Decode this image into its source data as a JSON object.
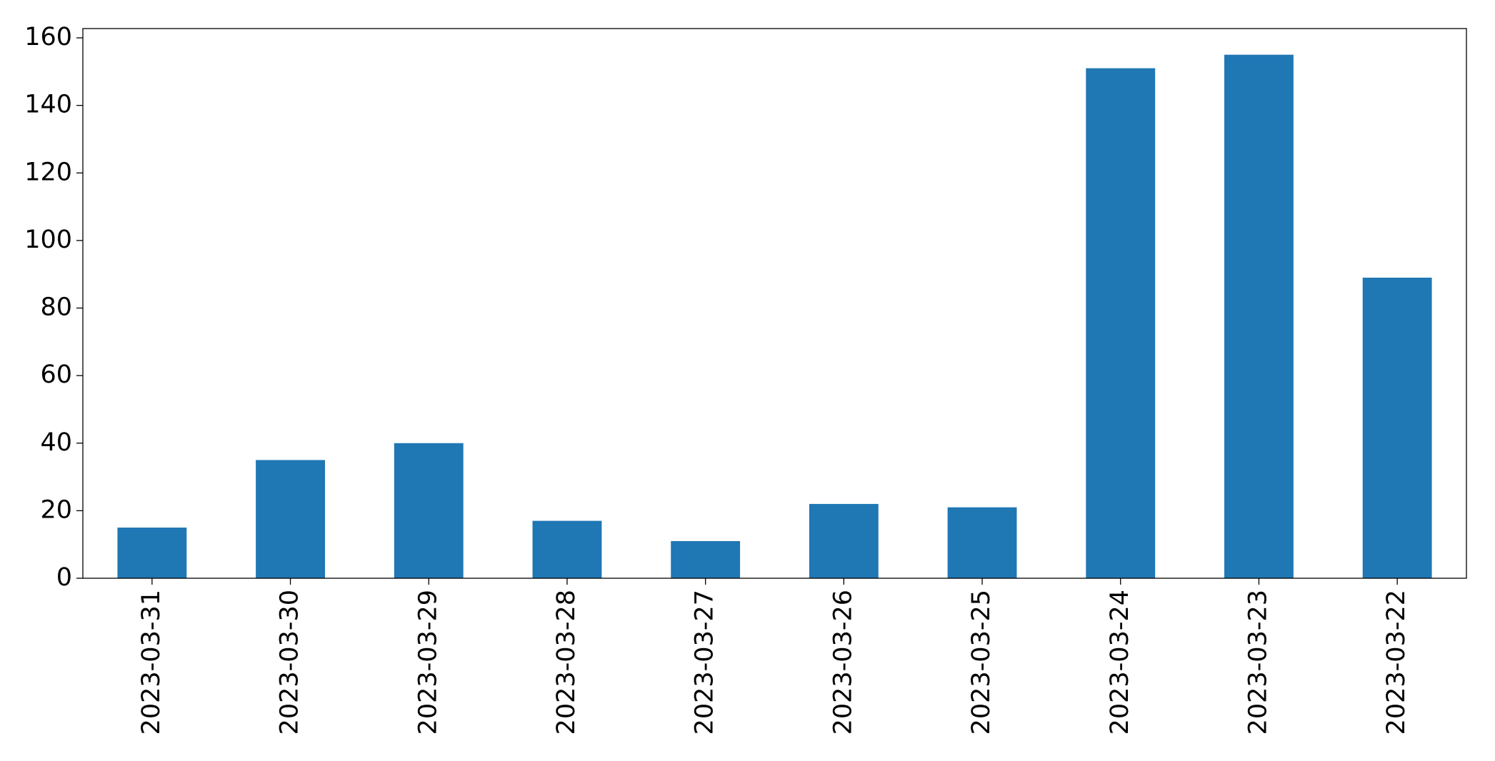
{
  "chart_data": {
    "type": "bar",
    "categories": [
      "2023-03-31",
      "2023-03-30",
      "2023-03-29",
      "2023-03-28",
      "2023-03-27",
      "2023-03-26",
      "2023-03-25",
      "2023-03-24",
      "2023-03-23",
      "2023-03-22"
    ],
    "values": [
      15,
      35,
      40,
      17,
      11,
      22,
      21,
      151,
      155,
      89
    ],
    "color": "#1f77b4",
    "ylim": [
      0,
      162.75
    ],
    "yticks": [
      0,
      20,
      40,
      60,
      80,
      100,
      120,
      140,
      160
    ],
    "grid": false
  }
}
